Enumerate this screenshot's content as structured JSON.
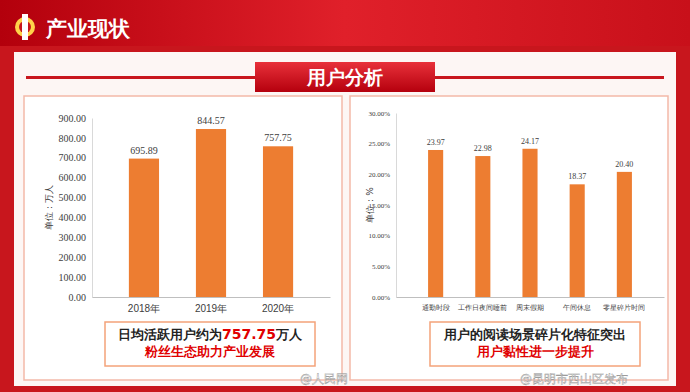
{
  "header": {
    "title": "产业现状",
    "section": "用户分析"
  },
  "chart_data": [
    {
      "type": "bar",
      "categories": [
        "2018年",
        "2019年",
        "2020年"
      ],
      "values": [
        695.89,
        844.57,
        757.75
      ],
      "color": "#ed7d31",
      "y_label": "单位：万人",
      "ylim": [
        0,
        900
      ],
      "yticks": [
        {
          "value": 0,
          "label": "0.00"
        },
        {
          "value": 100,
          "label": "100.00"
        },
        {
          "value": 200,
          "label": "200.00"
        },
        {
          "value": 300,
          "label": "300.00"
        },
        {
          "value": 400,
          "label": "400.00"
        },
        {
          "value": 500,
          "label": "500.00"
        },
        {
          "value": 600,
          "label": "600.00"
        },
        {
          "value": 700,
          "label": "700.00"
        },
        {
          "value": 800,
          "label": "800.00"
        },
        {
          "value": 900,
          "label": "900.00"
        }
      ],
      "grid": false,
      "data_labels": true,
      "annotations": [
        [
          "日均活跃用户约为",
          "757.75",
          "万人"
        ],
        [
          "粉丝生态助力产业发展"
        ]
      ]
    },
    {
      "type": "bar",
      "categories": [
        "通勤时段",
        "工作日夜间睡前",
        "周末假期",
        "午间休息",
        "零星碎片时间"
      ],
      "values": [
        23.97,
        22.98,
        24.17,
        18.37,
        20.4
      ],
      "value_labels": [
        "23.97",
        "22.98",
        "24.17",
        "18.37",
        "20.40"
      ],
      "color": "#ed7d31",
      "y_label": "单位：%",
      "ylim": [
        0,
        30
      ],
      "yticks": [
        {
          "value": 0,
          "label": "0.00%"
        },
        {
          "value": 5,
          "label": "5.00%"
        },
        {
          "value": 10,
          "label": "10.00%"
        },
        {
          "value": 15,
          "label": "15.00%"
        },
        {
          "value": 20,
          "label": "20.00%"
        },
        {
          "value": 25,
          "label": "25.00%"
        },
        {
          "value": 30,
          "label": "30.00%"
        }
      ],
      "grid": false,
      "data_labels": true,
      "annotations": [
        [
          "用户的阅读场景碎片化特征突出"
        ],
        [
          "用户黏性进一步提升"
        ]
      ]
    }
  ],
  "watermarks": [
    "@人民网",
    "@昆明市西山区发布"
  ]
}
